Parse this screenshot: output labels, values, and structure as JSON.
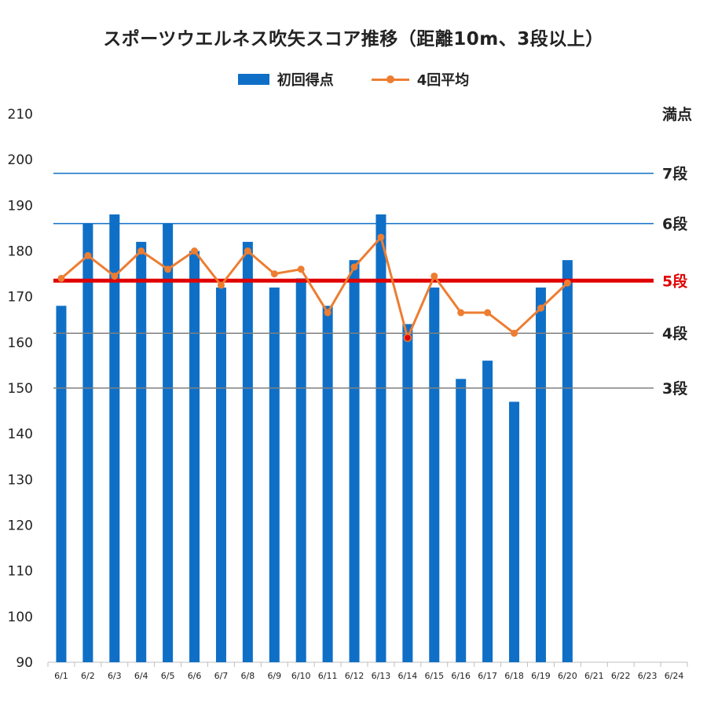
{
  "chart_data": {
    "type": "bar",
    "title": "スポーツウエルネス吹矢スコア推移（距離10m、3段以上）",
    "categories": [
      "6/1",
      "6/2",
      "6/3",
      "6/4",
      "6/5",
      "6/6",
      "6/7",
      "6/8",
      "6/9",
      "6/10",
      "6/11",
      "6/12",
      "6/13",
      "6/14",
      "6/15",
      "6/16",
      "6/17",
      "6/18",
      "6/19",
      "6/20",
      "6/21",
      "6/22",
      "6/23",
      "6/24"
    ],
    "series": [
      {
        "name": "初回得点",
        "type": "bar",
        "color": "#0F6FC6",
        "values": [
          168,
          186,
          188,
          182,
          186,
          180,
          172,
          182,
          172,
          174,
          168,
          178,
          188,
          164,
          172,
          152,
          156,
          147,
          172,
          178,
          null,
          null,
          null,
          null
        ]
      },
      {
        "name": "4回平均",
        "type": "line",
        "color": "#ED7D31",
        "values": [
          174,
          179,
          174.5,
          180,
          176,
          180,
          172.5,
          180,
          175,
          176,
          166.5,
          176.5,
          183,
          161,
          174.5,
          166.5,
          166.5,
          162,
          167.5,
          173,
          null,
          null,
          null,
          null
        ],
        "highlight_point": {
          "category": "6/14",
          "color": "#E00000"
        }
      }
    ],
    "ylim": [
      90,
      210
    ],
    "yticks": [
      90,
      100,
      110,
      120,
      130,
      140,
      150,
      160,
      170,
      180,
      190,
      200,
      210
    ],
    "grid": false,
    "legend": "top-center",
    "reference_lines": [
      {
        "value": 210,
        "label": "満点",
        "color": "#222222",
        "line": false
      },
      {
        "value": 197,
        "label": "7段",
        "color": "#0F6FC6",
        "line_color": "#0F6FC6",
        "label_color": "#222222",
        "width": 1.5
      },
      {
        "value": 186,
        "label": "6段",
        "color": "#0F6FC6",
        "line_color": "#0F6FC6",
        "label_color": "#222222",
        "width": 1.5
      },
      {
        "value": 173.5,
        "label": "5段",
        "color": "#E00000",
        "line_color": "#E00000",
        "label_color": "#E00000",
        "width": 5
      },
      {
        "value": 162,
        "label": "4段",
        "color": "#808080",
        "line_color": "#808080",
        "label_color": "#222222",
        "width": 1.5
      },
      {
        "value": 150,
        "label": "3段",
        "color": "#808080",
        "line_color": "#808080",
        "label_color": "#222222",
        "width": 1.5
      }
    ]
  }
}
